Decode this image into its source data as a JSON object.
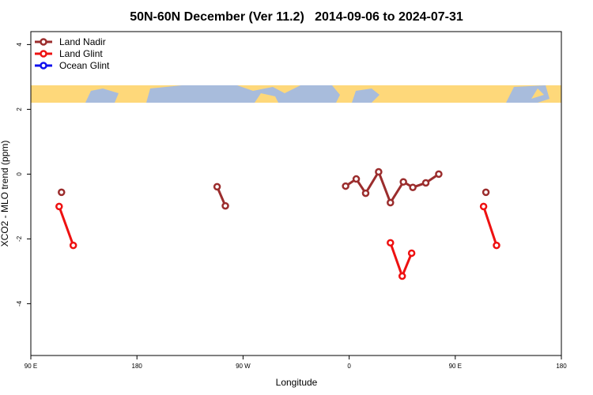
{
  "chart_data": {
    "type": "line",
    "title": "50N-60N December (Ver 11.2)   2014-09-06 to 2024-07-31",
    "x_label": "Longitude",
    "y_label": "XCO2 - MLO trend (ppm)",
    "xlim": [
      90,
      540
    ],
    "ylim": [
      -5.6,
      4.4
    ],
    "xticks": [
      {
        "value": 90,
        "label": "90 E"
      },
      {
        "value": 180,
        "label": "180"
      },
      {
        "value": 270,
        "label": "90 W"
      },
      {
        "value": 360,
        "label": "0"
      },
      {
        "value": 450,
        "label": "90 E"
      },
      {
        "value": 540,
        "label": "180"
      }
    ],
    "yticks": [
      -4,
      -2,
      0,
      2,
      4
    ],
    "legend": "top-left",
    "series": [
      {
        "name": "Land Nadir",
        "color": "#9b2d2d",
        "x": [
          116,
          null,
          248,
          255,
          null,
          357,
          366,
          374,
          385,
          395,
          406,
          414,
          425,
          436,
          null,
          476
        ],
        "values": [
          -0.56,
          null,
          -0.39,
          -0.98,
          null,
          -0.37,
          -0.15,
          -0.59,
          0.07,
          -0.88,
          -0.24,
          -0.41,
          -0.27,
          0.0,
          null,
          -0.56
        ]
      },
      {
        "name": "Land Glint",
        "color": "#ee1111",
        "x": [
          114,
          126,
          null,
          395,
          405,
          413,
          null,
          474,
          485
        ],
        "values": [
          -1.0,
          -2.2,
          null,
          -2.12,
          -3.15,
          -2.44,
          null,
          -1.0,
          -2.2
        ]
      },
      {
        "name": "Ocean Glint",
        "color": "#1111ee",
        "x": [],
        "values": []
      }
    ]
  }
}
